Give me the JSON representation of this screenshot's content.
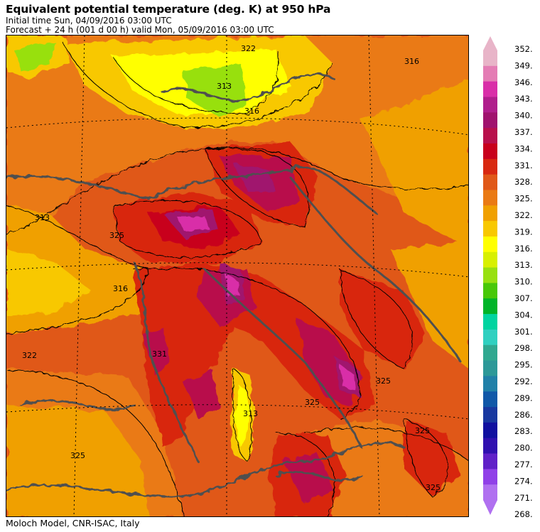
{
  "title": "Equivalent potential temperature (deg. K) at 950 hPa",
  "initial_line": "Initial time  Sun, 04/09/2016  03:00 UTC",
  "forecast_line": "Forecast  +  24 h  (001 d 00 h)  valid Mon, 05/09/2016 03:00 UTC",
  "footer": "Moloch Model, CNR-ISAC, Italy",
  "colorbar": {
    "labels": [
      "352.",
      "349.",
      "346.",
      "343.",
      "340.",
      "337.",
      "334.",
      "331.",
      "328.",
      "325.",
      "322.",
      "319.",
      "316.",
      "313.",
      "310.",
      "307.",
      "304.",
      "301.",
      "298.",
      "295.",
      "292.",
      "289.",
      "286.",
      "283.",
      "280.",
      "277.",
      "274.",
      "271.",
      "268."
    ],
    "colors": [
      "#e8b4c8",
      "#e47cb4",
      "#d92ea8",
      "#b01e8c",
      "#a0126e",
      "#b8104c",
      "#c8001c",
      "#d82810",
      "#e05818",
      "#ea7a14",
      "#f0a000",
      "#f8c800",
      "#ffff00",
      "#d8f000",
      "#98e010",
      "#48c808",
      "#00b428",
      "#00d4a0",
      "#30d0c0",
      "#30a890",
      "#2c9898",
      "#2080a8",
      "#1058a8",
      "#1838a0",
      "#1010a0",
      "#3010b0",
      "#6020c8",
      "#9040e8",
      "#b070f0"
    ]
  },
  "contour_labels": [
    "313",
    "313",
    "316",
    "322",
    "325",
    "322",
    "325",
    "316",
    "313",
    "331",
    "316",
    "325",
    "325",
    "325",
    "325"
  ],
  "icons": [
    "arrow-up-icon",
    "arrow-down-icon"
  ]
}
